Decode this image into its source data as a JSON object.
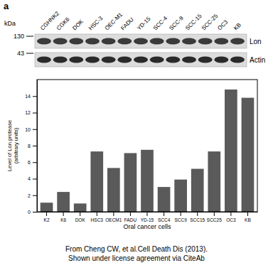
{
  "panel_label": "a",
  "blot": {
    "unit": "kDa",
    "lanes": [
      "CGHNK2",
      "CGK6",
      "DOK",
      "HSC-3",
      "OEC-M1",
      "FADU",
      "YD-15",
      "SCC-4",
      "SCC-9",
      "SCC-15",
      "SCC-25",
      "OC3",
      "KB"
    ],
    "markers": [
      130,
      43
    ],
    "bands": [
      "Lon",
      "Actin"
    ]
  },
  "chart_data": {
    "type": "bar",
    "categories": [
      "K2",
      "K6",
      "DOK",
      "HSC3",
      "OECM1",
      "FADU",
      "YD-15",
      "SCC4",
      "SCC9",
      "SCC15",
      "SCC25",
      "OC3",
      "KB"
    ],
    "values": [
      1.1,
      2.4,
      1.0,
      7.3,
      5.3,
      7.1,
      7.5,
      3.0,
      3.9,
      5.2,
      7.3,
      14.8,
      13.8
    ],
    "color": "#5a5a5a",
    "x_label": "Oral cancer cells",
    "y_label": "Level of Lon protease (arbitrary units)",
    "ylim": [
      0,
      16
    ],
    "yticks": [
      0,
      2,
      4,
      6,
      8,
      10,
      12,
      14
    ],
    "grid": false
  },
  "caption": [
    "From Cheng CW, et al.Cell Death Dis (2013).",
    "Shown under license agreement via CiteAb"
  ]
}
